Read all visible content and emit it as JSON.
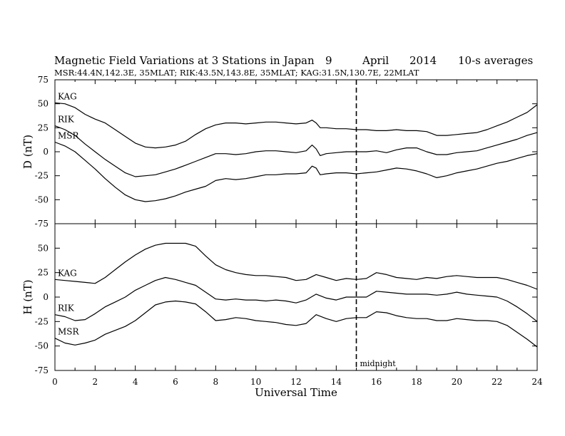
{
  "chart_data": {
    "title_left": "Magnetic Field Variations at 3 Stations in Japan",
    "title_day": "9",
    "title_month": "April",
    "title_year": "2014",
    "title_avg": "10-s averages",
    "subtitle": "MSR:44.4N,142.3E, 35MLAT;  RIK:43.5N,143.8E, 35MLAT;  KAG:31.5N,130.7E, 22MLAT",
    "xlabel": "Universal Time",
    "x_ticks": [
      "0",
      "2",
      "4",
      "6",
      "8",
      "10",
      "12",
      "14",
      "16",
      "18",
      "20",
      "22",
      "24"
    ],
    "xlim": [
      0,
      24
    ],
    "midnight_label": "midnight",
    "midnight_x": 15,
    "panels": [
      {
        "type": "line",
        "ylabel": "D (nT)",
        "ylim": [
          -75,
          75
        ],
        "y_ticks": [
          "75",
          "50",
          "25",
          "0",
          "-25",
          "-50",
          "-75"
        ],
        "series": [
          {
            "name": "KAG",
            "x": [
              0,
              0.5,
              1,
              1.5,
              2,
              2.5,
              3,
              3.5,
              4,
              4.5,
              5,
              5.5,
              6,
              6.5,
              7,
              7.5,
              8,
              8.5,
              9,
              9.5,
              10,
              10.5,
              11,
              11.5,
              12,
              12.5,
              12.8,
              13,
              13.2,
              13.5,
              14,
              14.5,
              15,
              15.5,
              16,
              16.5,
              17,
              17.5,
              18,
              18.5,
              19,
              19.5,
              20,
              20.5,
              21,
              21.5,
              22,
              22.5,
              23,
              23.5,
              24
            ],
            "y": [
              51,
              50,
              46,
              39,
              34,
              30,
              23,
              16,
              9,
              5,
              4,
              5,
              7,
              11,
              18,
              24,
              28,
              30,
              30,
              29,
              30,
              31,
              31,
              30,
              29,
              30,
              33,
              30,
              25,
              25,
              24,
              24,
              23,
              23,
              22,
              22,
              23,
              22,
              22,
              21,
              17,
              17,
              18,
              19,
              20,
              23,
              27,
              31,
              36,
              41,
              49
            ]
          },
          {
            "name": "RIK",
            "x": [
              0,
              0.5,
              1,
              1.5,
              2,
              2.5,
              3,
              3.5,
              4,
              4.5,
              5,
              5.5,
              6,
              6.5,
              7,
              7.5,
              8,
              8.5,
              9,
              9.5,
              10,
              10.5,
              11,
              11.5,
              12,
              12.5,
              12.8,
              13,
              13.2,
              13.5,
              14,
              14.5,
              15,
              15.5,
              16,
              16.5,
              17,
              17.5,
              18,
              18.5,
              19,
              19.5,
              20,
              20.5,
              21,
              21.5,
              22,
              22.5,
              23,
              23.5,
              24
            ],
            "y": [
              27,
              23,
              17,
              8,
              0,
              -8,
              -15,
              -22,
              -26,
              -25,
              -24,
              -21,
              -18,
              -14,
              -10,
              -6,
              -2,
              -2,
              -3,
              -2,
              0,
              1,
              1,
              0,
              -1,
              1,
              7,
              3,
              -4,
              -2,
              -1,
              0,
              0,
              0,
              1,
              -1,
              2,
              4,
              4,
              0,
              -3,
              -3,
              -1,
              0,
              1,
              4,
              7,
              10,
              13,
              17,
              20
            ]
          },
          {
            "name": "MSR",
            "x": [
              0,
              0.5,
              1,
              1.5,
              2,
              2.5,
              3,
              3.5,
              4,
              4.5,
              5,
              5.5,
              6,
              6.5,
              7,
              7.5,
              8,
              8.5,
              9,
              9.5,
              10,
              10.5,
              11,
              11.5,
              12,
              12.5,
              12.8,
              13,
              13.2,
              13.5,
              14,
              14.5,
              15,
              15.5,
              16,
              16.5,
              17,
              17.5,
              18,
              18.5,
              19,
              19.5,
              20,
              20.5,
              21,
              21.5,
              22,
              22.5,
              23,
              23.5,
              24
            ],
            "y": [
              10,
              6,
              0,
              -9,
              -18,
              -28,
              -37,
              -45,
              -50,
              -52,
              -51,
              -49,
              -46,
              -42,
              -39,
              -36,
              -30,
              -28,
              -29,
              -28,
              -26,
              -24,
              -24,
              -23,
              -23,
              -22,
              -15,
              -17,
              -24,
              -23,
              -22,
              -22,
              -23,
              -22,
              -21,
              -19,
              -17,
              -18,
              -20,
              -23,
              -27,
              -25,
              -22,
              -20,
              -18,
              -15,
              -12,
              -10,
              -7,
              -4,
              -2
            ]
          }
        ]
      },
      {
        "type": "line",
        "ylabel": "H (nT)",
        "ylim": [
          -75,
          75
        ],
        "y_ticks": [
          "",
          "50",
          "25",
          "0",
          "-25",
          "-50",
          "-75"
        ],
        "series": [
          {
            "name": "KAG",
            "x": [
              0,
              0.5,
              1,
              1.5,
              2,
              2.5,
              3,
              3.5,
              4,
              4.5,
              5,
              5.5,
              6,
              6.5,
              7,
              7.5,
              8,
              8.5,
              9,
              9.5,
              10,
              10.5,
              11,
              11.5,
              12,
              12.5,
              13,
              13.5,
              14,
              14.5,
              15,
              15.5,
              16,
              16.5,
              17,
              17.5,
              18,
              18.5,
              19,
              19.5,
              20,
              20.5,
              21,
              21.5,
              22,
              22.5,
              23,
              23.5,
              24
            ],
            "y": [
              18,
              17,
              16,
              15,
              14,
              20,
              28,
              36,
              43,
              49,
              53,
              55,
              55,
              55,
              52,
              42,
              33,
              28,
              25,
              23,
              22,
              22,
              21,
              20,
              17,
              18,
              23,
              20,
              17,
              19,
              18,
              19,
              25,
              23,
              20,
              19,
              18,
              20,
              19,
              21,
              22,
              21,
              20,
              20,
              20,
              18,
              15,
              12,
              8
            ]
          },
          {
            "name": "RIK",
            "x": [
              0,
              0.5,
              1,
              1.5,
              2,
              2.5,
              3,
              3.5,
              4,
              4.5,
              5,
              5.5,
              6,
              6.5,
              7,
              7.5,
              8,
              8.5,
              9,
              9.5,
              10,
              10.5,
              11,
              11.5,
              12,
              12.5,
              13,
              13.5,
              14,
              14.5,
              15,
              15.5,
              16,
              16.5,
              17,
              17.5,
              18,
              18.5,
              19,
              19.5,
              20,
              20.5,
              21,
              21.5,
              22,
              22.5,
              23,
              23.5,
              24
            ],
            "y": [
              -18,
              -20,
              -24,
              -23,
              -17,
              -10,
              -5,
              0,
              7,
              12,
              17,
              20,
              18,
              15,
              12,
              5,
              -2,
              -3,
              -2,
              -3,
              -3,
              -4,
              -3,
              -4,
              -6,
              -3,
              3,
              -1,
              -3,
              0,
              0,
              0,
              6,
              5,
              4,
              3,
              3,
              3,
              2,
              3,
              5,
              3,
              2,
              1,
              0,
              -4,
              -10,
              -17,
              -25
            ]
          },
          {
            "name": "MSR",
            "x": [
              0,
              0.5,
              1,
              1.5,
              2,
              2.5,
              3,
              3.5,
              4,
              4.5,
              5,
              5.5,
              6,
              6.5,
              7,
              7.5,
              8,
              8.5,
              9,
              9.5,
              10,
              10.5,
              11,
              11.5,
              12,
              12.5,
              13,
              13.5,
              14,
              14.5,
              15,
              15.5,
              16,
              16.5,
              17,
              17.5,
              18,
              18.5,
              19,
              19.5,
              20,
              20.5,
              21,
              21.5,
              22,
              22.5,
              23,
              23.5,
              24
            ],
            "y": [
              -42,
              -47,
              -49,
              -47,
              -44,
              -38,
              -34,
              -30,
              -24,
              -16,
              -8,
              -5,
              -4,
              -5,
              -7,
              -15,
              -24,
              -23,
              -21,
              -22,
              -24,
              -25,
              -26,
              -28,
              -29,
              -27,
              -18,
              -22,
              -25,
              -22,
              -21,
              -21,
              -15,
              -16,
              -19,
              -21,
              -22,
              -22,
              -24,
              -24,
              -22,
              -23,
              -24,
              -24,
              -25,
              -29,
              -36,
              -43,
              -51
            ]
          }
        ]
      }
    ]
  }
}
